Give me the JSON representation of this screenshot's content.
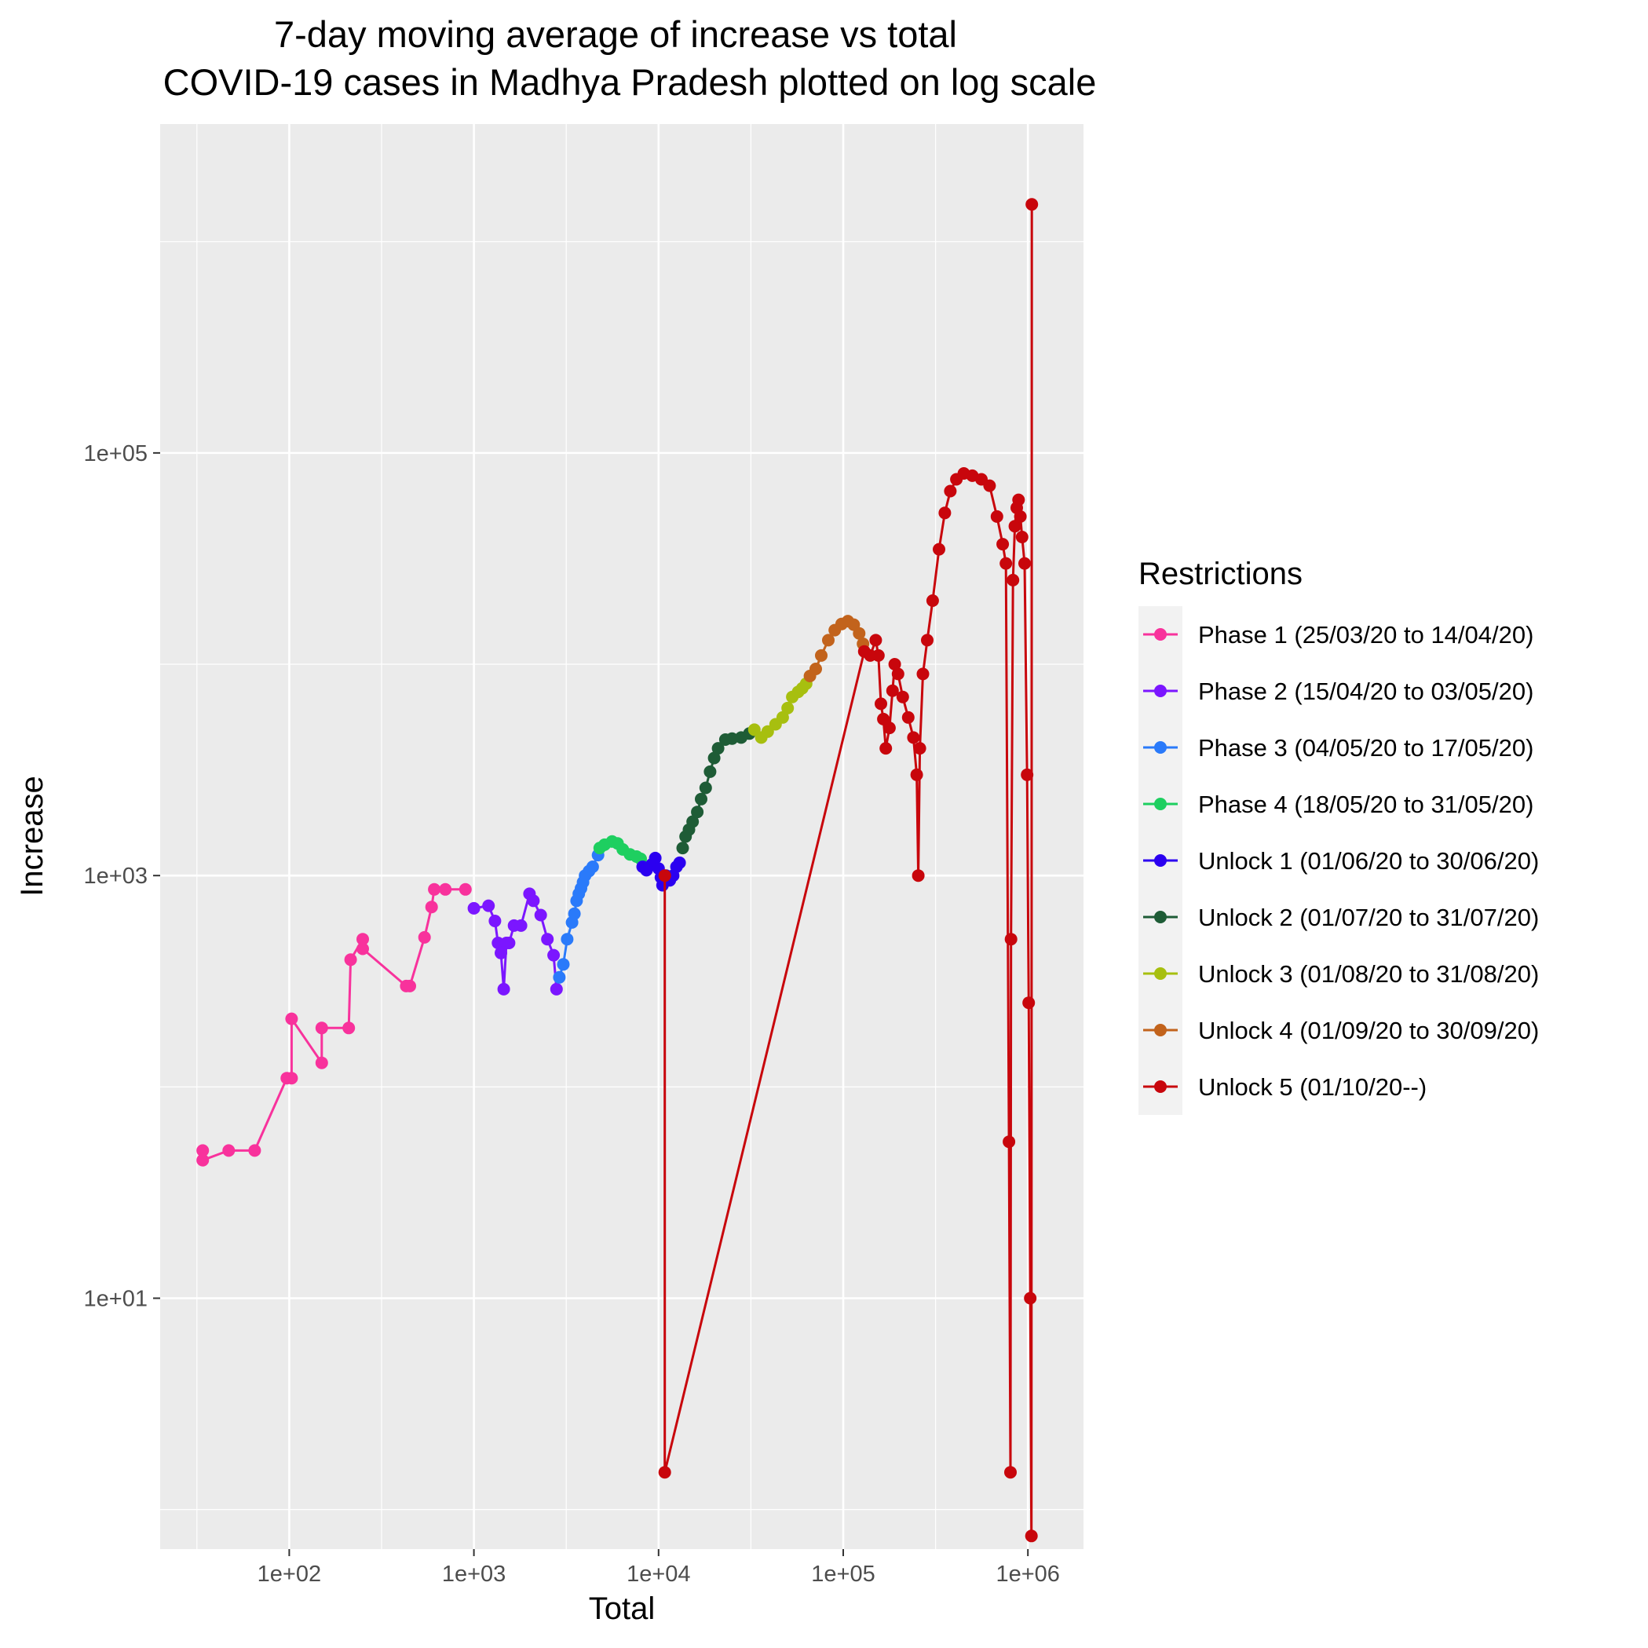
{
  "chart_data": {
    "type": "line",
    "title_lines": [
      "7-day moving average of increase vs total",
      "COVID-19 cases in Madhya Pradesh plotted on log scale"
    ],
    "xlabel": "Total",
    "ylabel": "Increase",
    "x_scale": "log10",
    "y_scale": "log10",
    "xlim": [
      20,
      2000000
    ],
    "ylim": [
      0.65,
      3600000
    ],
    "x_ticks": [
      100,
      1000,
      10000,
      100000,
      1000000
    ],
    "x_tick_labels": [
      "1e+02",
      "1e+03",
      "1e+04",
      "1e+05",
      "1e+06"
    ],
    "y_ticks": [
      10,
      1000,
      100000
    ],
    "y_tick_labels": [
      "1e+01",
      "1e+03",
      "1e+05"
    ],
    "grid": true,
    "legend": {
      "title": "Restrictions",
      "position": "right"
    },
    "series": [
      {
        "name": "Phase 1 (25/03/20 to 14/04/20)",
        "color": "#F8329C",
        "points": [
          [
            34,
            50
          ],
          [
            34,
            45
          ],
          [
            47,
            50
          ],
          [
            65,
            50
          ],
          [
            97,
            110
          ],
          [
            103,
            110
          ],
          [
            103,
            210
          ],
          [
            150,
            130
          ],
          [
            150,
            190
          ],
          [
            210,
            190
          ],
          [
            215,
            400
          ],
          [
            250,
            500
          ],
          [
            250,
            450
          ],
          [
            430,
            300
          ],
          [
            450,
            300
          ],
          [
            540,
            510
          ],
          [
            590,
            710
          ],
          [
            610,
            860
          ],
          [
            700,
            860
          ],
          [
            900,
            860
          ]
        ]
      },
      {
        "name": "Phase 2 (15/04/20 to 03/05/20)",
        "color": "#7B16FF",
        "points": [
          [
            1000,
            700
          ],
          [
            1200,
            720
          ],
          [
            1300,
            610
          ],
          [
            1350,
            480
          ],
          [
            1400,
            430
          ],
          [
            1450,
            290
          ],
          [
            1500,
            480
          ],
          [
            1550,
            480
          ],
          [
            1650,
            580
          ],
          [
            1800,
            580
          ],
          [
            2000,
            820
          ],
          [
            2100,
            760
          ],
          [
            2300,
            650
          ],
          [
            2500,
            500
          ],
          [
            2700,
            420
          ],
          [
            2800,
            290
          ]
        ]
      },
      {
        "name": "Phase 3 (04/05/20 to 17/05/20)",
        "color": "#2A7AFA",
        "points": [
          [
            2900,
            330
          ],
          [
            3050,
            380
          ],
          [
            3200,
            500
          ],
          [
            3400,
            600
          ],
          [
            3500,
            660
          ],
          [
            3600,
            760
          ],
          [
            3700,
            820
          ],
          [
            3800,
            870
          ],
          [
            3900,
            930
          ],
          [
            4000,
            1000
          ],
          [
            4200,
            1050
          ],
          [
            4400,
            1100
          ],
          [
            4700,
            1250
          ]
        ]
      },
      {
        "name": "Phase 4 (18/05/20 to 31/05/20)",
        "color": "#1ECF60",
        "points": [
          [
            4800,
            1350
          ],
          [
            5100,
            1400
          ],
          [
            5600,
            1450
          ],
          [
            6000,
            1420
          ],
          [
            6400,
            1330
          ],
          [
            7000,
            1260
          ],
          [
            7600,
            1230
          ],
          [
            8000,
            1200
          ]
        ]
      },
      {
        "name": "Unlock 1 (01/06/20 to 30/06/20)",
        "color": "#2B00F0",
        "points": [
          [
            8200,
            1100
          ],
          [
            8600,
            1060
          ],
          [
            9200,
            1130
          ],
          [
            9600,
            1210
          ],
          [
            10000,
            1080
          ],
          [
            10300,
            980
          ],
          [
            10500,
            900
          ],
          [
            11000,
            1000
          ],
          [
            11500,
            950
          ],
          [
            12000,
            1000
          ],
          [
            12500,
            1100
          ],
          [
            13000,
            1150
          ]
        ]
      },
      {
        "name": "Unlock 2 (01/07/20 to 31/07/20)",
        "color": "#1E5C36",
        "points": [
          [
            13500,
            1350
          ],
          [
            14000,
            1530
          ],
          [
            14600,
            1650
          ],
          [
            15300,
            1800
          ],
          [
            16200,
            2000
          ],
          [
            17000,
            2300
          ],
          [
            18000,
            2600
          ],
          [
            19000,
            3100
          ],
          [
            20000,
            3600
          ],
          [
            21000,
            4000
          ],
          [
            23000,
            4400
          ],
          [
            25000,
            4450
          ],
          [
            28000,
            4500
          ],
          [
            31000,
            4700
          ]
        ]
      },
      {
        "name": "Unlock 3 (01/08/20 to 31/08/20)",
        "color": "#A7BF0F",
        "points": [
          [
            33000,
            4900
          ],
          [
            36000,
            4500
          ],
          [
            39000,
            4800
          ],
          [
            43000,
            5200
          ],
          [
            47000,
            5600
          ],
          [
            50000,
            6200
          ],
          [
            53000,
            7000
          ],
          [
            57000,
            7400
          ],
          [
            60000,
            7700
          ],
          [
            63000,
            8100
          ]
        ]
      },
      {
        "name": "Unlock 4 (01/09/20 to 30/09/20)",
        "color": "#C2631C",
        "points": [
          [
            66000,
            8800
          ],
          [
            71000,
            9500
          ],
          [
            76000,
            11000
          ],
          [
            83000,
            13000
          ],
          [
            90000,
            14500
          ],
          [
            98000,
            15500
          ],
          [
            106000,
            16000
          ],
          [
            114000,
            15400
          ],
          [
            122000,
            14000
          ],
          [
            128000,
            12500
          ]
        ]
      },
      {
        "name": "Unlock 5 (01/10/20--)",
        "color": "#C8060C",
        "points": [
          [
            10800,
            1000
          ],
          [
            10800,
            1.5
          ],
          [
            130000,
            11500
          ],
          [
            140000,
            11000
          ],
          [
            150000,
            13000
          ],
          [
            155000,
            11000
          ],
          [
            160000,
            6500
          ],
          [
            165000,
            5500
          ],
          [
            170000,
            4000
          ],
          [
            178000,
            5000
          ],
          [
            185000,
            7500
          ],
          [
            190000,
            10000
          ],
          [
            198000,
            9000
          ],
          [
            210000,
            7000
          ],
          [
            225000,
            5600
          ],
          [
            240000,
            4500
          ],
          [
            250000,
            3000
          ],
          [
            255000,
            1000
          ],
          [
            260000,
            4000
          ],
          [
            270000,
            9000
          ],
          [
            285000,
            13000
          ],
          [
            305000,
            20000
          ],
          [
            330000,
            35000
          ],
          [
            355000,
            52000
          ],
          [
            380000,
            66000
          ],
          [
            410000,
            75000
          ],
          [
            450000,
            80000
          ],
          [
            500000,
            78000
          ],
          [
            560000,
            75000
          ],
          [
            620000,
            70000
          ],
          [
            680000,
            50000
          ],
          [
            730000,
            37000
          ],
          [
            760000,
            30000
          ],
          [
            790000,
            55
          ],
          [
            805000,
            1.5
          ],
          [
            810000,
            500
          ],
          [
            830000,
            25000
          ],
          [
            850000,
            45000
          ],
          [
            870000,
            55000
          ],
          [
            890000,
            60000
          ],
          [
            910000,
            50000
          ],
          [
            930000,
            40000
          ],
          [
            960000,
            30000
          ],
          [
            990000,
            3000
          ],
          [
            1010000,
            250
          ],
          [
            1030000,
            10
          ],
          [
            1045000,
            0.75
          ],
          [
            1050000,
            1500000
          ]
        ]
      }
    ]
  }
}
